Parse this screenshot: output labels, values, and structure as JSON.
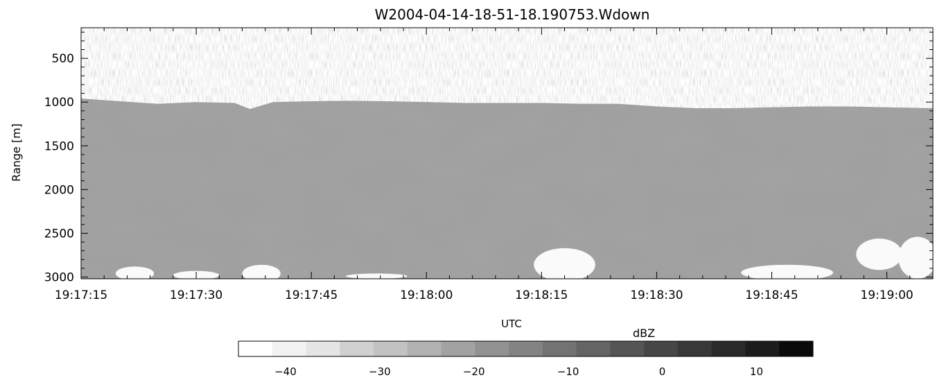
{
  "chart_data": {
    "type": "heatmap",
    "title": "W2004-04-14-18-51-18.190753.Wdown",
    "xlabel": "UTC",
    "ylabel": "Range [m]",
    "x_tick_labels": [
      "19:17:15",
      "19:17:30",
      "19:17:45",
      "19:18:00",
      "19:18:15",
      "19:18:30",
      "19:18:45",
      "19:19:00"
    ],
    "x_tick_seconds": [
      0,
      15,
      30,
      45,
      60,
      75,
      90,
      105
    ],
    "xlim_seconds": [
      0,
      111
    ],
    "y_ticks": [
      500,
      1000,
      1500,
      2000,
      2500,
      3000
    ],
    "ylim": [
      150,
      3020
    ],
    "y_inverted": true,
    "colorbar": {
      "label": "dBZ",
      "range": [
        -45,
        16
      ],
      "tick_values": [
        -40,
        -30,
        -20,
        -10,
        0,
        10
      ],
      "tick_labels": [
        "−40",
        "−30",
        "−20",
        "−10",
        "0",
        "10"
      ],
      "levels": [
        "#ffffff",
        "#f2f2f2",
        "#e5e5e5",
        "#d0d0d0",
        "#c2c2c2",
        "#b2b2b2",
        "#a2a2a2",
        "#929292",
        "#838383",
        "#737373",
        "#646464",
        "#555555",
        "#464646",
        "#383838",
        "#2a2a2a",
        "#1c1c1c",
        "#0a0a0a"
      ]
    },
    "cloud_top_profile": {
      "x_seconds": [
        0,
        5,
        10,
        15,
        20,
        22,
        25,
        30,
        35,
        40,
        45,
        50,
        55,
        60,
        65,
        70,
        75,
        80,
        85,
        90,
        95,
        100,
        105,
        111
      ],
      "range_m": [
        960,
        990,
        1020,
        1000,
        1010,
        1080,
        1000,
        990,
        985,
        990,
        1000,
        1010,
        1010,
        1010,
        1020,
        1020,
        1050,
        1070,
        1070,
        1060,
        1050,
        1050,
        1060,
        1070
      ]
    },
    "background_level_dbz": -45,
    "cloud_level_range_dbz": [
      -25,
      10
    ]
  }
}
